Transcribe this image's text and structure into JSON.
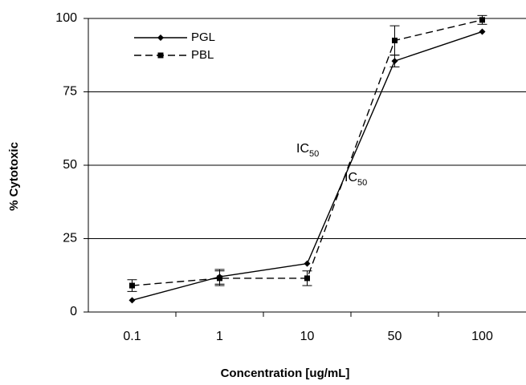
{
  "chart_data": {
    "type": "line",
    "x_label": "Concentration [ug/mL]",
    "y_label": "% Cytotoxic",
    "categories": [
      "0.1",
      "1",
      "10",
      "50",
      "100"
    ],
    "series": [
      {
        "name": "PGL",
        "color": "#000000",
        "marker": "diamond",
        "dashed": false,
        "values": [
          4,
          12,
          16.5,
          85.5,
          95.5
        ],
        "errors": [
          0,
          2.5,
          0,
          2,
          0
        ]
      },
      {
        "name": "PBL",
        "color": "#000000",
        "marker": "square",
        "dashed": true,
        "values": [
          9,
          11.5,
          11.5,
          92.5,
          99.5
        ],
        "errors": [
          2,
          2.5,
          2.5,
          5,
          1.5
        ]
      }
    ],
    "annotations": [
      {
        "text": "IC",
        "subscript": "50"
      },
      {
        "text": "IC",
        "subscript": "50"
      }
    ],
    "ylim": [
      0,
      100
    ],
    "yticks": [
      0,
      25,
      50,
      75,
      100
    ],
    "grid": true
  }
}
